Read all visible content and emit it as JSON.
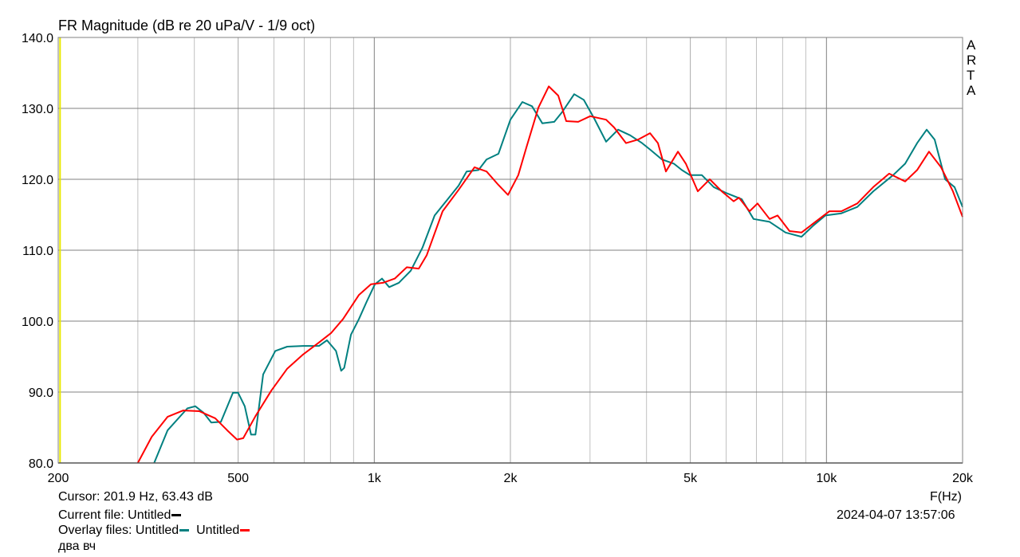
{
  "chart_data": {
    "type": "line",
    "title": "FR Magnitude (dB re 20 uPa/V - 1/9 oct)",
    "xlabel": "F(Hz)",
    "ylabel": "",
    "x_scale": "log",
    "xlim": [
      200,
      20000
    ],
    "ylim": [
      80,
      140
    ],
    "grid": true,
    "x_ticks": [
      {
        "v": 200,
        "label": "200"
      },
      {
        "v": 500,
        "label": "500"
      },
      {
        "v": 1000,
        "label": "1k"
      },
      {
        "v": 2000,
        "label": "2k"
      },
      {
        "v": 5000,
        "label": "5k"
      },
      {
        "v": 10000,
        "label": "10k"
      },
      {
        "v": 20000,
        "label": "20k"
      }
    ],
    "x_minor": [
      300,
      400,
      600,
      700,
      800,
      900,
      3000,
      4000,
      6000,
      7000,
      8000,
      9000
    ],
    "y_ticks": [
      {
        "v": 80,
        "label": "80.0"
      },
      {
        "v": 90,
        "label": "90.0"
      },
      {
        "v": 100,
        "label": "100.0"
      },
      {
        "v": 110,
        "label": "110.0"
      },
      {
        "v": 120,
        "label": "120.0"
      },
      {
        "v": 130,
        "label": "130.0"
      },
      {
        "v": 140,
        "label": "140.0"
      }
    ],
    "cursor_hz": 201.9,
    "cursor_color": "#e8e800",
    "series": [
      {
        "color": "#008080",
        "points": [
          [
            326,
            80
          ],
          [
            349,
            84.6
          ],
          [
            386,
            87.7
          ],
          [
            402,
            88
          ],
          [
            419,
            87.1
          ],
          [
            436,
            85.7
          ],
          [
            458,
            85.8
          ],
          [
            487,
            89.9
          ],
          [
            500,
            89.9
          ],
          [
            517,
            88
          ],
          [
            534,
            84
          ],
          [
            546,
            84
          ],
          [
            568,
            92.5
          ],
          [
            604,
            95.8
          ],
          [
            642,
            96.4
          ],
          [
            696,
            96.5
          ],
          [
            755,
            96.5
          ],
          [
            786,
            97.3
          ],
          [
            823,
            95.8
          ],
          [
            845,
            93
          ],
          [
            858,
            93.4
          ],
          [
            888,
            98.1
          ],
          [
            925,
            100.3
          ],
          [
            963,
            102.8
          ],
          [
            1003,
            105.2
          ],
          [
            1040,
            106
          ],
          [
            1079,
            104.8
          ],
          [
            1133,
            105.4
          ],
          [
            1204,
            107.1
          ],
          [
            1279,
            110.4
          ],
          [
            1360,
            114.9
          ],
          [
            1445,
            117
          ],
          [
            1536,
            119.1
          ],
          [
            1600,
            121.1
          ],
          [
            1700,
            121.3
          ],
          [
            1771,
            122.8
          ],
          [
            1882,
            123.6
          ],
          [
            2000,
            128.4
          ],
          [
            2126,
            130.9
          ],
          [
            2233,
            130.3
          ],
          [
            2353,
            127.9
          ],
          [
            2501,
            128.1
          ],
          [
            2604,
            129.5
          ],
          [
            2768,
            132
          ],
          [
            2906,
            131.2
          ],
          [
            3064,
            128.6
          ],
          [
            3256,
            125.3
          ],
          [
            3460,
            127
          ],
          [
            3680,
            126.2
          ],
          [
            3910,
            125.1
          ],
          [
            4073,
            124.2
          ],
          [
            4327,
            122.8
          ],
          [
            4598,
            122.2
          ],
          [
            4788,
            121.3
          ],
          [
            4988,
            120.6
          ],
          [
            5300,
            120.6
          ],
          [
            5634,
            118.9
          ],
          [
            5988,
            118.1
          ],
          [
            6494,
            117.2
          ],
          [
            6900,
            114.4
          ],
          [
            7486,
            114
          ],
          [
            8120,
            112.5
          ],
          [
            8806,
            111.9
          ],
          [
            9361,
            113.5
          ],
          [
            9948,
            114.9
          ],
          [
            10790,
            115.2
          ],
          [
            11700,
            116.1
          ],
          [
            12690,
            118.3
          ],
          [
            14050,
            120.6
          ],
          [
            14930,
            122.2
          ],
          [
            15870,
            125.1
          ],
          [
            16660,
            127
          ],
          [
            17350,
            125.6
          ],
          [
            18300,
            120
          ],
          [
            19200,
            118.9
          ],
          [
            20000,
            116.1
          ]
        ]
      },
      {
        "color": "#ff0000",
        "points": [
          [
            300,
            80
          ],
          [
            322,
            83.7
          ],
          [
            349,
            86.5
          ],
          [
            378,
            87.4
          ],
          [
            410,
            87.3
          ],
          [
            445,
            86.3
          ],
          [
            473,
            84.6
          ],
          [
            497,
            83.3
          ],
          [
            513,
            83.5
          ],
          [
            546,
            86.6
          ],
          [
            592,
            90.2
          ],
          [
            642,
            93.3
          ],
          [
            696,
            95.3
          ],
          [
            755,
            97
          ],
          [
            802,
            98.3
          ],
          [
            853,
            100.3
          ],
          [
            925,
            103.7
          ],
          [
            983,
            105.2
          ],
          [
            1045,
            105.4
          ],
          [
            1110,
            106
          ],
          [
            1180,
            107.6
          ],
          [
            1254,
            107.4
          ],
          [
            1306,
            109.3
          ],
          [
            1416,
            115.5
          ],
          [
            1536,
            118.5
          ],
          [
            1666,
            121.7
          ],
          [
            1771,
            121.1
          ],
          [
            1882,
            119.2
          ],
          [
            1976,
            117.8
          ],
          [
            2082,
            120.6
          ],
          [
            2170,
            124.5
          ],
          [
            2306,
            130.1
          ],
          [
            2431,
            133.1
          ],
          [
            2552,
            131.8
          ],
          [
            2658,
            128.2
          ],
          [
            2825,
            128.1
          ],
          [
            3002,
            128.9
          ],
          [
            3256,
            128.4
          ],
          [
            3392,
            127.3
          ],
          [
            3604,
            125.1
          ],
          [
            3830,
            125.6
          ],
          [
            4073,
            126.5
          ],
          [
            4240,
            125.1
          ],
          [
            4416,
            121.1
          ],
          [
            4694,
            123.9
          ],
          [
            4887,
            122.2
          ],
          [
            5194,
            118.3
          ],
          [
            5520,
            120
          ],
          [
            5868,
            118.3
          ],
          [
            6236,
            116.9
          ],
          [
            6404,
            117.4
          ],
          [
            6760,
            115.5
          ],
          [
            7040,
            116.6
          ],
          [
            7486,
            114.4
          ],
          [
            7796,
            114.9
          ],
          [
            8286,
            112.7
          ],
          [
            8806,
            112.5
          ],
          [
            9361,
            113.8
          ],
          [
            10150,
            115.5
          ],
          [
            10790,
            115.5
          ],
          [
            11700,
            116.6
          ],
          [
            12690,
            118.9
          ],
          [
            13760,
            120.8
          ],
          [
            14930,
            119.7
          ],
          [
            15870,
            121.3
          ],
          [
            16860,
            123.9
          ],
          [
            17920,
            121.7
          ],
          [
            19040,
            118.3
          ],
          [
            20000,
            114.7
          ]
        ]
      }
    ]
  },
  "watermark": [
    "A",
    "R",
    "T",
    "A"
  ],
  "footer": {
    "cursor": "Cursor: 201.9 Hz, 63.43 dB",
    "current_file_label": "Current file: Untitled",
    "current_file_color": "#000000",
    "overlay_label": "Overlay files: Untitled",
    "overlay_color_1": "#008080",
    "overlay_name_2": "Untitled",
    "overlay_color_2": "#ff0000",
    "note": "два вч",
    "timestamp": "2024-04-07   13:57:06"
  }
}
